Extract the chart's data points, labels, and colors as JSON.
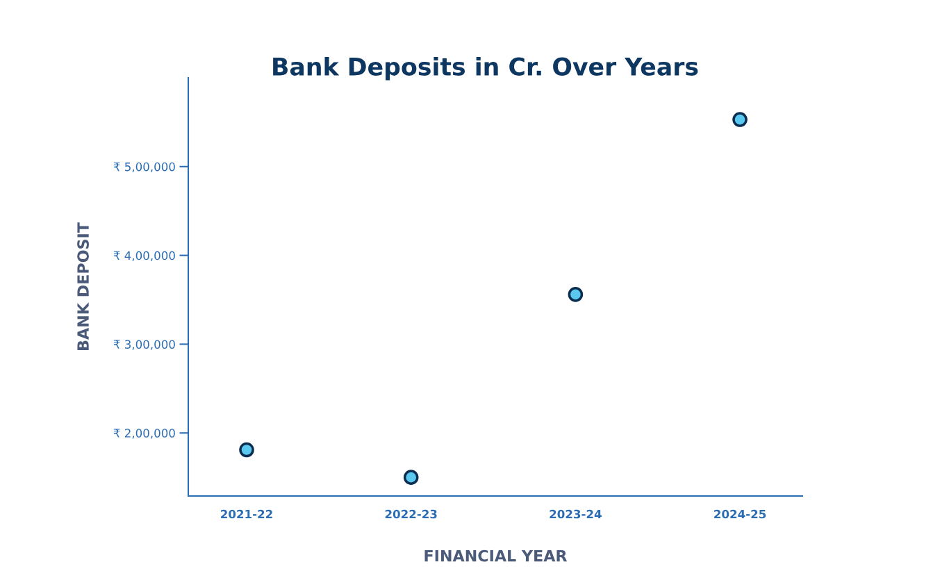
{
  "chart_data": {
    "type": "scatter",
    "title": "Bank Deposits in Cr. Over Years",
    "xlabel": "FINANCIAL YEAR",
    "ylabel": "BANK DEPOSIT",
    "categories": [
      "2021-22",
      "2022-23",
      "2023-24",
      "2024-25"
    ],
    "series": [
      {
        "color": "#5bc8f0",
        "values": [
          181000,
          150000,
          356000,
          553000
        ]
      }
    ],
    "ylim": [
      129000,
      600000
    ],
    "yticks": [
      {
        "value": 200000,
        "label": "₹ 2,00,000"
      },
      {
        "value": 300000,
        "label": "₹ 3,00,000"
      },
      {
        "value": 400000,
        "label": "₹ 4,00,000"
      },
      {
        "value": 500000,
        "label": "₹ 5,00,000"
      }
    ],
    "grid": false,
    "legend": false,
    "marker": "circle"
  }
}
